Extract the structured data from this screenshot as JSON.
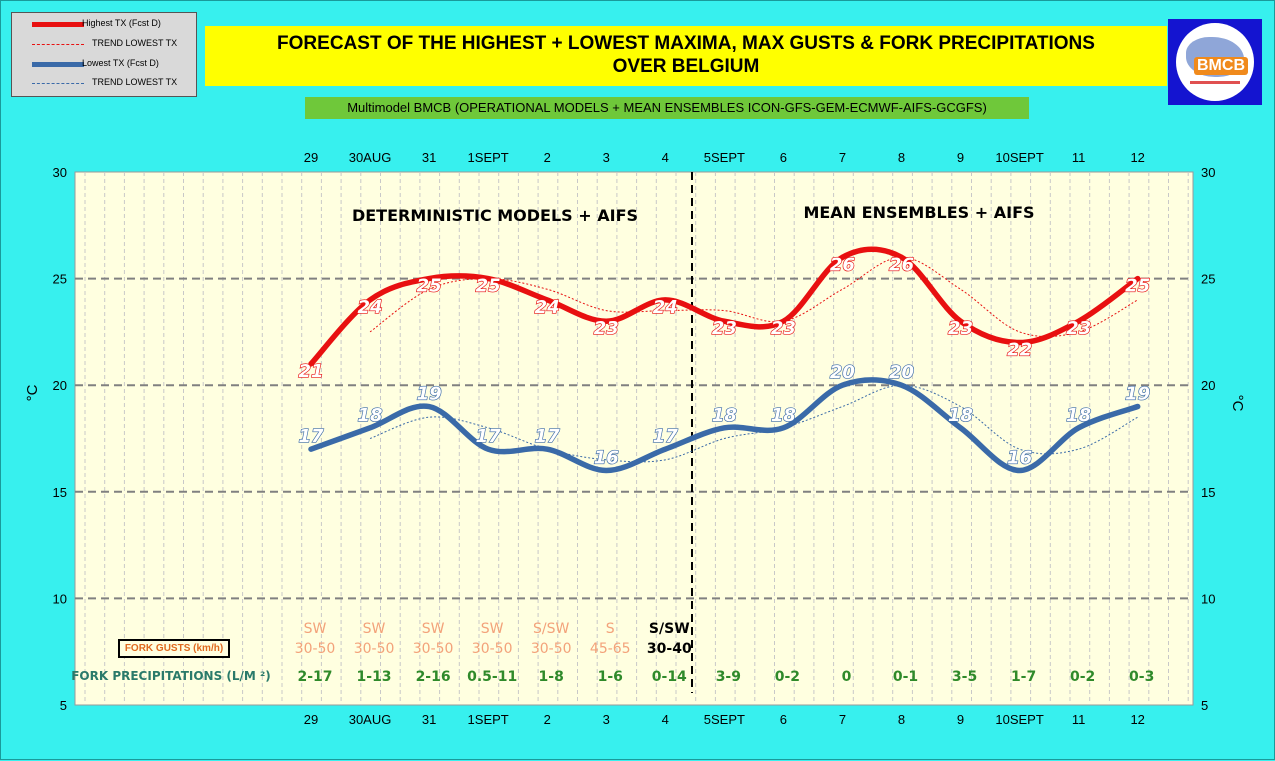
{
  "legend": {
    "items": [
      {
        "label": "Highest TX (Fcst D)",
        "style": "thick",
        "color": "#e81010"
      },
      {
        "label": "TREND LOWEST  TX",
        "style": "dotted",
        "color": "#e81010"
      },
      {
        "label": "Lowest TX (Fcst D)",
        "style": "thick",
        "color": "#3a6aa8"
      },
      {
        "label": "TREND LOWEST TX",
        "style": "dotted",
        "color": "#3a6aa8"
      }
    ]
  },
  "title": {
    "line1": "FORECAST OF THE HIGHEST + LOWEST MAXIMA, MAX GUSTS & FORK PRECIPITATIONS",
    "line2": "OVER BELGIUM"
  },
  "subtitle": "Multimodel BMCB (OPERATIONAL MODELS + MEAN ENSEMBLES  ICON-GFS-GEM-ECMWF-AIFS-GCGFS)",
  "logo": {
    "text": "BMCB",
    "icon": "bmcb-logo-icon"
  },
  "gust_label": "FORK GUSTS (km/h)",
  "precip_label": "FORK PRECIPITATIONS (L/M ²)",
  "chart_data": {
    "type": "line",
    "categories": [
      "29",
      "30AUG",
      "31",
      "1SEPT",
      "2",
      "3",
      "4",
      "5SEPT",
      "6",
      "7",
      "8",
      "9",
      "10SEPT",
      "11",
      "12"
    ],
    "series": [
      {
        "name": "Highest TX (Fcst D)",
        "color": "#e81010",
        "values": [
          21,
          24,
          25,
          25,
          24,
          23,
          24,
          23,
          23,
          26,
          26,
          23,
          22,
          23,
          25
        ],
        "labels": [
          "21",
          "24",
          "25",
          "25",
          "24",
          "23",
          "24",
          "23",
          "23",
          "26",
          "26",
          "23",
          "22",
          "23",
          "25"
        ]
      },
      {
        "name": "Lowest TX (Fcst D)",
        "color": "#3a6aa8",
        "values": [
          17,
          18,
          19,
          17,
          17,
          16,
          17,
          18,
          18,
          20,
          20,
          18,
          16,
          18,
          19
        ],
        "labels": [
          "17",
          "18",
          "19",
          "17",
          "17",
          "16",
          "17",
          "18",
          "18",
          "20",
          "20",
          "18",
          "16",
          "18",
          "19"
        ]
      }
    ],
    "ylabel": "°C",
    "y2label": "°C",
    "ylim": [
      5,
      30
    ],
    "yticks": [
      5,
      10,
      15,
      20,
      25,
      30
    ],
    "grid": true,
    "annotations": {
      "left": "DETERMINISTIC MODELS + AIFS",
      "right": "MEAN ENSEMBLES + AIFS"
    },
    "gusts": {
      "directions": [
        "SW",
        "SW",
        "SW",
        "SW",
        "S/SW",
        "S",
        "S/SW"
      ],
      "speeds": [
        "30-50",
        "30-50",
        "30-50",
        "30-50",
        "30-50",
        "45-65",
        "30-40"
      ]
    },
    "precipitation": [
      "2-17",
      "1-13",
      "2-16",
      "0.5-11",
      "1-8",
      "1-6",
      "0-14",
      "3-9",
      "0-2",
      "0",
      "0-1",
      "3-5",
      "1-7",
      "0-2",
      "0-3"
    ]
  }
}
